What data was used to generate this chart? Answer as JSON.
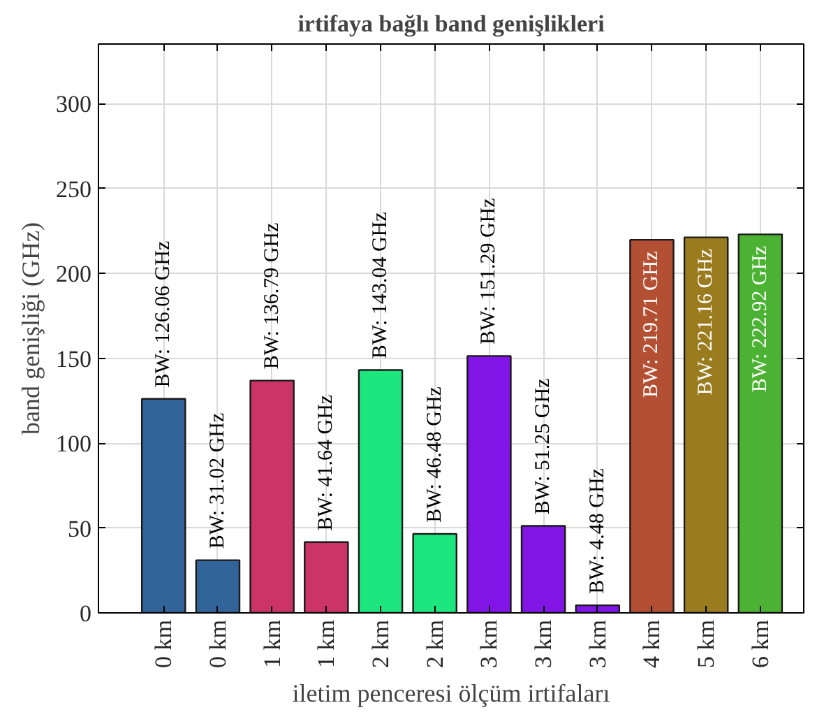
{
  "chart_data": {
    "type": "bar",
    "title": "irtifaya bağlı band genişlikleri",
    "xlabel": "iletim penceresi ölçüm irtifaları",
    "ylabel": "band genişliği (GHz)",
    "categories": [
      "0 km",
      "0 km",
      "1 km",
      "1 km",
      "2 km",
      "2 km",
      "3 km",
      "3 km",
      "3 km",
      "4 km",
      "5 km",
      "6 km"
    ],
    "values": [
      126.06,
      31.02,
      136.79,
      41.64,
      143.04,
      46.48,
      151.29,
      51.25,
      4.48,
      219.71,
      221.16,
      222.92
    ],
    "colors": [
      "#31659a",
      "#31659a",
      "#cc3366",
      "#cc3366",
      "#1ee67f",
      "#1ee67f",
      "#8015e6",
      "#8015e6",
      "#8015e6",
      "#b34f33",
      "#9a7b1e",
      "#4cb233"
    ],
    "value_labels": [
      "BW: 126.06 GHz",
      "BW: 31.02 GHz",
      "BW: 136.79 GHz",
      "BW: 41.64 GHz",
      "BW: 143.04 GHz",
      "BW: 46.48 GHz",
      "BW: 151.29 GHz",
      "BW: 51.25 GHz",
      "BW: 4.48 GHz",
      "BW: 219.71 GHz",
      "BW: 221.16 GHz",
      "BW: 222.92 GHz"
    ],
    "ylim": [
      0,
      335
    ],
    "yticks": [
      0,
      50,
      100,
      150,
      200,
      250,
      300
    ],
    "grid": true
  }
}
